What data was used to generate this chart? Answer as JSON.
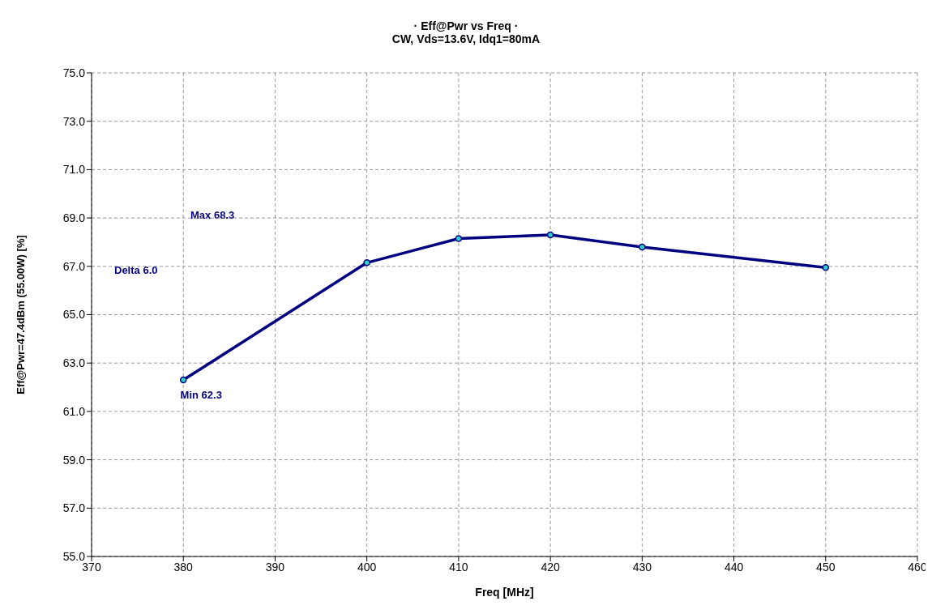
{
  "chart_data": {
    "type": "line",
    "title": "· Eff@Pwr vs Freq ·",
    "subtitle": "CW, Vds=13.6V, Idq1=80mA",
    "xlabel": "Freq  [MHz]",
    "ylabel": "Eff@Pwr=47.4dBm  (55.00W)  [%]",
    "x": [
      380,
      400,
      410,
      420,
      430,
      450
    ],
    "series": [
      {
        "color": "#000080",
        "values": [
          62.3,
          67.15,
          68.15,
          68.3,
          67.8,
          66.95
        ]
      }
    ],
    "xlim": [
      370,
      460
    ],
    "xticks": [
      370,
      380,
      390,
      400,
      410,
      420,
      430,
      440,
      450,
      460
    ],
    "ylim": [
      55,
      75
    ],
    "yticks": [
      {
        "value": 55,
        "label": "55.0"
      },
      {
        "value": 57,
        "label": "57.0"
      },
      {
        "value": 59,
        "label": "59.0"
      },
      {
        "value": 61,
        "label": "61.0"
      },
      {
        "value": 63,
        "label": "63.0"
      },
      {
        "value": 65,
        "label": "65.0"
      },
      {
        "value": 67,
        "label": "67.0"
      },
      {
        "value": 69,
        "label": "69.0"
      },
      {
        "value": 71,
        "label": "71.0"
      },
      {
        "value": 73,
        "label": "73.0"
      },
      {
        "value": 75,
        "label": "75.0"
      }
    ],
    "annotations": [
      "Max 68.3",
      "Delta 6.0",
      {
        "text": "Min 62.3",
        "x": 380,
        "y": 62.3
      }
    ],
    "grid": true,
    "marker": "circle",
    "line_style": "solid"
  }
}
